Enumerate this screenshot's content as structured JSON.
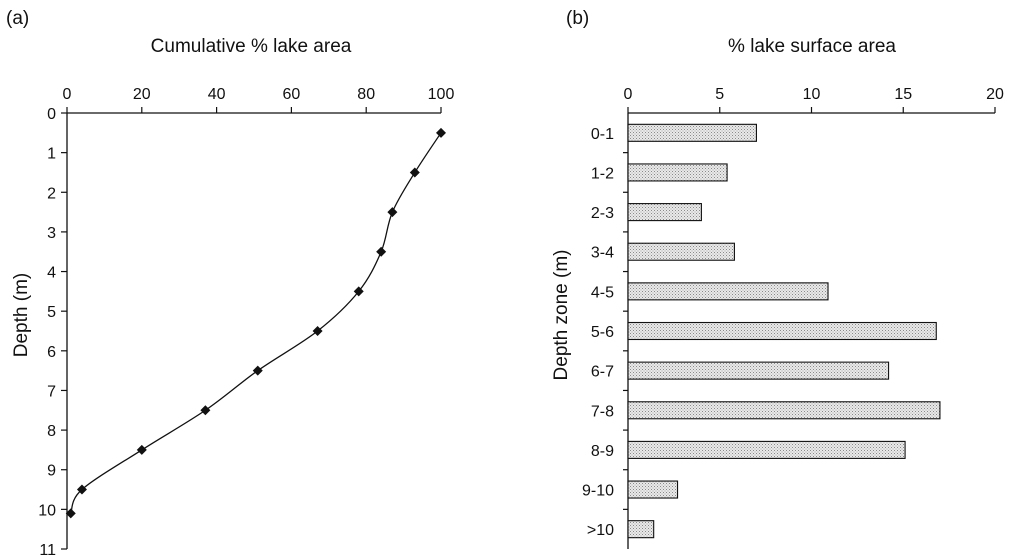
{
  "chart_data": [
    {
      "type": "line",
      "panel_label": "(a)",
      "title": "Cumulative % lake area",
      "xlabel": "Cumulative % lake area",
      "ylabel": "Depth (m)",
      "xlim": [
        0,
        100
      ],
      "ylim": [
        0,
        11
      ],
      "y_inverted": true,
      "x_axis_position": "top",
      "x_ticks": [
        "0",
        "20",
        "40",
        "60",
        "80",
        "100"
      ],
      "y_ticks": [
        "0",
        "1",
        "2",
        "3",
        "4",
        "5",
        "6",
        "7",
        "8",
        "9",
        "10",
        "11"
      ],
      "series": [
        {
          "marker": "diamond",
          "x": [
            100,
            93,
            87,
            84,
            78,
            67,
            51,
            37,
            20,
            4,
            1
          ],
          "y": [
            0.5,
            1.5,
            2.5,
            3.5,
            4.5,
            5.5,
            6.5,
            7.5,
            8.5,
            9.5,
            10.1
          ]
        }
      ]
    },
    {
      "type": "bar",
      "orientation": "horizontal",
      "panel_label": "(b)",
      "title": "% lake surface area",
      "xlabel": "% lake surface area",
      "ylabel": "Depth zone (m)",
      "xlim": [
        0,
        20
      ],
      "x_axis_position": "top",
      "x_ticks": [
        "0",
        "5",
        "10",
        "15",
        "20"
      ],
      "categories": [
        "0-1",
        "1-2",
        "2-3",
        "3-4",
        "4-5",
        "5-6",
        "6-7",
        "7-8",
        "8-9",
        "9-10",
        ">10"
      ],
      "values": [
        7.0,
        5.4,
        4.0,
        5.8,
        10.9,
        16.8,
        14.2,
        17.0,
        15.1,
        2.7,
        1.4
      ],
      "bar_fill": "stippled light gray"
    }
  ]
}
